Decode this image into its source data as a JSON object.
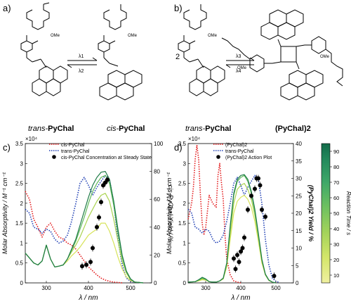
{
  "panel_labels": {
    "a": "a)",
    "b": "b)",
    "c": "c)",
    "d": "d)"
  },
  "scheme_a": {
    "left_label_prefix": "trans-",
    "left_label_main": "PyChal",
    "right_label_prefix": "cis-",
    "right_label_main": "PyChal",
    "arrow_top": "λ1",
    "arrow_bottom": "λ2",
    "ome": "OMe"
  },
  "scheme_b": {
    "coefficient": "2",
    "left_label_prefix": "trans-",
    "left_label_main": "PyChal",
    "right_label": "(PyChal)2",
    "arrow_top": "λ3",
    "arrow_bottom": "λ4",
    "ome": "OMe"
  },
  "chart_data": [
    {
      "type": "line",
      "panel": "c",
      "xlabel": "λ / nm",
      "ylabel_left": "Molar Absorptivity / M⁻¹ cm⁻¹",
      "ylabel_right": "cis-PyChal Yield / %",
      "multiplier": "×10⁴",
      "xlim": [
        250,
        550
      ],
      "ylim_left": [
        0,
        3.5
      ],
      "ylim_right": [
        0,
        100
      ],
      "x_ticks": [
        "300",
        "400",
        "500"
      ],
      "y_ticks_left": [
        "0",
        "0.5",
        "1",
        "1.5",
        "2",
        "2.5",
        "3",
        "3.5"
      ],
      "y_ticks_right": [
        "0",
        "20",
        "40",
        "60",
        "80",
        "100"
      ],
      "legend": [
        "cis-PyChal",
        "trans-PyChal",
        "cis-PyChal Concentration at Steady State"
      ],
      "series": [
        {
          "name": "cis-PyChal",
          "color": "#e31a1c",
          "style": "dotted",
          "x": [
            250,
            260,
            270,
            280,
            290,
            300,
            310,
            320,
            330,
            340,
            350,
            360,
            370,
            380,
            390,
            400,
            410,
            420,
            430,
            440,
            450,
            460,
            470,
            480
          ],
          "y": [
            2.3,
            2.1,
            1.6,
            1.4,
            1.15,
            1.4,
            1.5,
            1.3,
            1.15,
            1.1,
            1.0,
            0.95,
            0.85,
            0.7,
            0.55,
            0.4,
            0.3,
            0.2,
            0.12,
            0.07,
            0.04,
            0.02,
            0.01,
            0
          ]
        },
        {
          "name": "trans-PyChal",
          "color": "#1f3fb4",
          "style": "dotted",
          "x": [
            250,
            260,
            270,
            280,
            290,
            300,
            310,
            320,
            330,
            340,
            350,
            360,
            370,
            380,
            390,
            400,
            410,
            420,
            430,
            440,
            450,
            460,
            470,
            480,
            490,
            500,
            510
          ],
          "y": [
            1.85,
            1.75,
            1.4,
            1.35,
            1.25,
            1.35,
            1.3,
            1.1,
            1.0,
            1.05,
            1.2,
            1.55,
            2.0,
            2.5,
            2.65,
            2.45,
            2.2,
            2.4,
            2.55,
            2.7,
            2.6,
            2.0,
            1.1,
            0.45,
            0.12,
            0.04,
            0.01
          ]
        },
        {
          "name": "",
          "color": "#d7e35a",
          "style": "solid",
          "x": [
            250,
            270,
            280,
            290,
            300,
            310,
            320,
            330,
            340,
            350,
            360,
            370,
            380,
            390,
            400,
            410,
            420,
            430,
            440,
            450,
            460,
            470,
            480,
            490,
            500,
            510,
            520,
            530
          ],
          "y": [
            0.75,
            0.5,
            0.45,
            0.55,
            0.95,
            0.6,
            0.4,
            0.42,
            0.45,
            0.55,
            0.68,
            0.78,
            0.9,
            1.05,
            1.2,
            1.28,
            1.35,
            1.5,
            1.5,
            1.3,
            1.0,
            0.65,
            0.35,
            0.15,
            0.06,
            0.02,
            0.01,
            0
          ]
        },
        {
          "name": "",
          "color": "#a9d34f",
          "style": "solid",
          "x": [
            250,
            270,
            280,
            290,
            300,
            310,
            320,
            330,
            340,
            350,
            360,
            370,
            380,
            390,
            400,
            410,
            420,
            430,
            440,
            450,
            460,
            470,
            480,
            490,
            500,
            510,
            520,
            530
          ],
          "y": [
            0.75,
            0.5,
            0.45,
            0.55,
            0.95,
            0.6,
            0.4,
            0.42,
            0.45,
            0.6,
            0.78,
            0.95,
            1.15,
            1.4,
            1.65,
            1.85,
            2.05,
            2.2,
            2.25,
            2.05,
            1.6,
            1.05,
            0.55,
            0.25,
            0.08,
            0.02,
            0.01,
            0
          ]
        },
        {
          "name": "",
          "color": "#5fb95a",
          "style": "solid",
          "x": [
            250,
            270,
            280,
            290,
            300,
            310,
            320,
            330,
            340,
            350,
            360,
            370,
            380,
            390,
            400,
            410,
            420,
            430,
            440,
            450,
            460,
            470,
            480,
            490,
            500,
            510,
            520,
            530
          ],
          "y": [
            0.75,
            0.5,
            0.45,
            0.55,
            0.95,
            0.6,
            0.4,
            0.42,
            0.45,
            0.6,
            0.82,
            1.05,
            1.35,
            1.65,
            2.0,
            2.3,
            2.5,
            2.65,
            2.7,
            2.5,
            1.95,
            1.25,
            0.65,
            0.28,
            0.09,
            0.02,
            0.01,
            0
          ]
        },
        {
          "name": "",
          "color": "#1e7b47",
          "style": "solid",
          "x": [
            250,
            270,
            280,
            290,
            300,
            310,
            320,
            330,
            340,
            350,
            360,
            370,
            380,
            390,
            400,
            410,
            420,
            430,
            440,
            450,
            460,
            470,
            480,
            490,
            500,
            510,
            520,
            530
          ],
          "y": [
            0.75,
            0.5,
            0.45,
            0.55,
            0.95,
            0.6,
            0.4,
            0.42,
            0.45,
            0.6,
            0.85,
            1.1,
            1.45,
            1.8,
            2.15,
            2.45,
            2.65,
            2.78,
            2.8,
            2.6,
            2.05,
            1.35,
            0.7,
            0.3,
            0.1,
            0.02,
            0.01,
            0
          ]
        },
        {
          "name": "cis-PyChal Concentration at Steady State",
          "color": "#000000",
          "style": "markers",
          "axis": "right",
          "x": [
            385,
            395,
            405,
            410,
            420,
            425,
            430,
            435,
            440,
            445
          ],
          "y": [
            12,
            13,
            15,
            25,
            40,
            47,
            58,
            70,
            72,
            74
          ]
        }
      ]
    },
    {
      "type": "line",
      "panel": "d",
      "xlabel": "λ / nm",
      "ylabel_left": "Molar Absorptivity / M⁻¹ cm⁻¹",
      "ylabel_right": "(PyChal)2 Yield / %",
      "multiplier": "×10⁴",
      "xlim": [
        250,
        550
      ],
      "ylim_left": [
        0,
        3.5
      ],
      "ylim_right": [
        0,
        40
      ],
      "x_ticks": [
        "300",
        "400",
        "500"
      ],
      "y_ticks_left": [
        "0",
        "0.5",
        "1",
        "1.5",
        "2",
        "2.5",
        "3",
        "3.5"
      ],
      "y_ticks_right": [
        "0",
        "5",
        "10",
        "15",
        "20",
        "25",
        "30",
        "35",
        "40"
      ],
      "legend": [
        "(PyChal)2",
        "trans-PyChal",
        "(PyChal)2 Action Plot"
      ],
      "series": [
        {
          "name": "(PyChal)2",
          "color": "#e31a1c",
          "style": "dotted",
          "x": [
            250,
            260,
            265,
            270,
            275,
            280,
            285,
            290,
            295,
            300,
            305,
            310,
            320,
            330,
            335,
            340,
            345,
            350,
            355,
            360,
            370,
            380,
            390,
            400
          ],
          "y": [
            1.6,
            2.0,
            2.4,
            3.1,
            3.45,
            3.1,
            2.2,
            1.5,
            1.2,
            1.4,
            1.8,
            2.2,
            2.0,
            1.9,
            2.7,
            3.0,
            2.5,
            2.1,
            1.2,
            0.6,
            0.2,
            0.05,
            0.02,
            0
          ]
        },
        {
          "name": "trans-PyChal",
          "color": "#1f3fb4",
          "style": "dotted",
          "x": [
            250,
            260,
            270,
            280,
            290,
            300,
            310,
            320,
            330,
            340,
            350,
            360,
            370,
            380,
            390,
            400,
            410,
            420,
            430,
            440,
            450,
            460,
            470,
            480,
            490,
            500,
            510
          ],
          "y": [
            1.85,
            1.75,
            1.4,
            1.35,
            1.25,
            1.35,
            1.3,
            1.1,
            1.0,
            1.05,
            1.2,
            1.55,
            2.0,
            2.5,
            2.65,
            2.45,
            2.2,
            2.4,
            2.55,
            2.7,
            2.6,
            2.0,
            1.1,
            0.45,
            0.12,
            0.04,
            0.01
          ]
        },
        {
          "name": "",
          "color": "#d7e35a",
          "style": "solid",
          "x": [
            250,
            270,
            280,
            290,
            300,
            310,
            320,
            330,
            340,
            350,
            360,
            370,
            380,
            390,
            400,
            410,
            420,
            430,
            440,
            450,
            460,
            470,
            480,
            490,
            500
          ],
          "y": [
            0.02,
            0.03,
            0.05,
            0.08,
            0.07,
            0.03,
            0.02,
            0.02,
            0.05,
            0.1,
            0.4,
            1.1,
            1.75,
            2.05,
            2.15,
            2.2,
            2.1,
            1.9,
            1.55,
            1.05,
            0.5,
            0.2,
            0.06,
            0.02,
            0
          ]
        },
        {
          "name": "",
          "color": "#a9d34f",
          "style": "solid",
          "x": [
            250,
            270,
            280,
            290,
            300,
            310,
            320,
            330,
            340,
            350,
            360,
            370,
            380,
            390,
            400,
            410,
            420,
            430,
            440,
            450,
            460,
            470,
            480,
            490,
            500
          ],
          "y": [
            0.02,
            0.03,
            0.06,
            0.1,
            0.08,
            0.03,
            0.02,
            0.02,
            0.05,
            0.1,
            0.45,
            1.25,
            2.0,
            2.35,
            2.45,
            2.5,
            2.35,
            2.1,
            1.7,
            1.15,
            0.55,
            0.2,
            0.06,
            0.02,
            0
          ]
        },
        {
          "name": "",
          "color": "#5fb95a",
          "style": "solid",
          "x": [
            250,
            270,
            280,
            290,
            300,
            310,
            320,
            330,
            340,
            350,
            360,
            370,
            380,
            390,
            400,
            410,
            420,
            430,
            440,
            450,
            460,
            470,
            480,
            490,
            500
          ],
          "y": [
            0.02,
            0.03,
            0.07,
            0.12,
            0.09,
            0.03,
            0.02,
            0.02,
            0.05,
            0.12,
            0.5,
            1.4,
            2.2,
            2.55,
            2.65,
            2.7,
            2.55,
            2.25,
            1.8,
            1.2,
            0.58,
            0.22,
            0.07,
            0.02,
            0
          ]
        },
        {
          "name": "",
          "color": "#1e7b47",
          "style": "solid",
          "x": [
            250,
            270,
            280,
            290,
            300,
            310,
            320,
            330,
            340,
            350,
            360,
            370,
            380,
            390,
            400,
            410,
            420,
            430,
            440,
            450,
            460,
            470,
            480,
            490,
            500
          ],
          "y": [
            0.02,
            0.03,
            0.08,
            0.14,
            0.1,
            0.03,
            0.02,
            0.02,
            0.05,
            0.12,
            0.5,
            1.45,
            2.25,
            2.6,
            2.7,
            2.72,
            2.6,
            2.3,
            1.85,
            1.25,
            0.6,
            0.22,
            0.07,
            0.02,
            0
          ]
        },
        {
          "name": "(PyChal)2 Action Plot",
          "color": "#000000",
          "style": "markers",
          "axis": "right",
          "x": [
            380,
            385,
            390,
            395,
            400,
            405,
            410,
            420,
            430,
            440,
            445,
            450,
            455,
            460,
            470,
            495
          ],
          "y": [
            7,
            4,
            8,
            6,
            9,
            10,
            13,
            21,
            25,
            27,
            30,
            30,
            28,
            21,
            19,
            2
          ]
        }
      ]
    }
  ],
  "colorbar": {
    "label": "Reaction Time / s",
    "ticks": [
      "10",
      "20",
      "30",
      "40",
      "50",
      "60",
      "70",
      "80",
      "90"
    ],
    "range": [
      5,
      95
    ],
    "colors": [
      "#f0f0a0",
      "#d4e66a",
      "#a4d35a",
      "#6fc160",
      "#3fa868",
      "#248a5c",
      "#136b4a"
    ]
  }
}
